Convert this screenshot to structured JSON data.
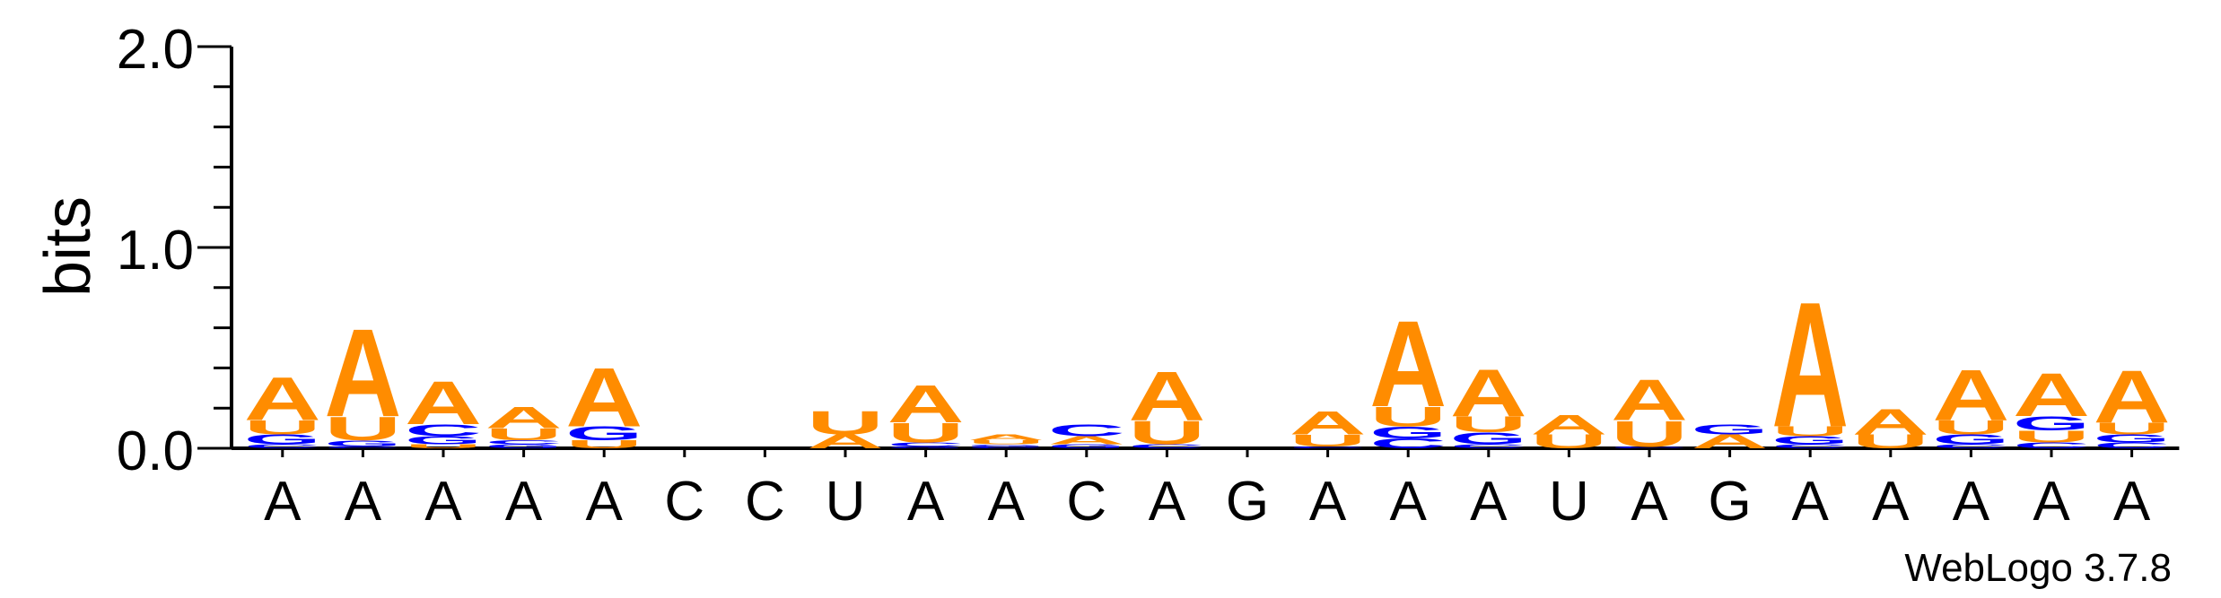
{
  "chart_data": {
    "type": "sequence-logo",
    "ylabel": "bits",
    "ylim": [
      0,
      2.0
    ],
    "yticks": [
      "0.0",
      "1.0",
      "2.0"
    ],
    "credit": "WebLogo 3.7.8",
    "colors": {
      "A": "#ff8c00",
      "U": "#ff8c00",
      "C": "#0000ff",
      "G": "#0000ff"
    },
    "positions": [
      {
        "label": "A",
        "stack": [
          [
            "C",
            0.02
          ],
          [
            "G",
            0.05
          ],
          [
            "U",
            0.07
          ],
          [
            "A",
            0.22
          ]
        ]
      },
      {
        "label": "A",
        "stack": [
          [
            "C",
            0.01
          ],
          [
            "G",
            0.03
          ],
          [
            "U",
            0.12
          ],
          [
            "A",
            0.45
          ]
        ]
      },
      {
        "label": "A",
        "stack": [
          [
            "U",
            0.02
          ],
          [
            "G",
            0.04
          ],
          [
            "C",
            0.06
          ],
          [
            "A",
            0.22
          ]
        ]
      },
      {
        "label": "A",
        "stack": [
          [
            "G",
            0.02
          ],
          [
            "C",
            0.02
          ],
          [
            "U",
            0.06
          ],
          [
            "A",
            0.11
          ]
        ]
      },
      {
        "label": "A",
        "stack": [
          [
            "U",
            0.04
          ],
          [
            "G",
            0.07
          ],
          [
            "A",
            0.3
          ]
        ]
      },
      {
        "label": "C",
        "stack": []
      },
      {
        "label": "C",
        "stack": []
      },
      {
        "label": "U",
        "stack": [
          [
            "A",
            0.07
          ],
          [
            "U",
            0.12
          ]
        ]
      },
      {
        "label": "A",
        "stack": [
          [
            "G",
            0.01
          ],
          [
            "C",
            0.02
          ],
          [
            "U",
            0.1
          ],
          [
            "A",
            0.19
          ]
        ]
      },
      {
        "label": "A",
        "stack": [
          [
            "C",
            0.01
          ],
          [
            "G",
            0.01
          ],
          [
            "U",
            0.02
          ],
          [
            "A",
            0.03
          ]
        ]
      },
      {
        "label": "C",
        "stack": [
          [
            "G",
            0.02
          ],
          [
            "A",
            0.04
          ],
          [
            "C",
            0.06
          ]
        ]
      },
      {
        "label": "A",
        "stack": [
          [
            "C",
            0.02
          ],
          [
            "U",
            0.12
          ],
          [
            "A",
            0.25
          ]
        ]
      },
      {
        "label": "G",
        "stack": []
      },
      {
        "label": "A",
        "stack": [
          [
            "C",
            0.01
          ],
          [
            "U",
            0.06
          ],
          [
            "A",
            0.12
          ]
        ]
      },
      {
        "label": "A",
        "stack": [
          [
            "C",
            0.05
          ],
          [
            "G",
            0.06
          ],
          [
            "U",
            0.1
          ],
          [
            "A",
            0.44
          ]
        ]
      },
      {
        "label": "A",
        "stack": [
          [
            "C",
            0.02
          ],
          [
            "G",
            0.06
          ],
          [
            "U",
            0.08
          ],
          [
            "A",
            0.24
          ]
        ]
      },
      {
        "label": "U",
        "stack": [
          [
            "U",
            0.07
          ],
          [
            "A",
            0.1
          ]
        ]
      },
      {
        "label": "A",
        "stack": [
          [
            "C",
            0.01
          ],
          [
            "U",
            0.13
          ],
          [
            "A",
            0.21
          ]
        ]
      },
      {
        "label": "G",
        "stack": [
          [
            "A",
            0.07
          ],
          [
            "G",
            0.05
          ]
        ]
      },
      {
        "label": "A",
        "stack": [
          [
            "C",
            0.02
          ],
          [
            "G",
            0.04
          ],
          [
            "U",
            0.05
          ],
          [
            "A",
            0.64
          ]
        ]
      },
      {
        "label": "A",
        "stack": [
          [
            "U",
            0.07
          ],
          [
            "A",
            0.13
          ]
        ]
      },
      {
        "label": "A",
        "stack": [
          [
            "C",
            0.02
          ],
          [
            "G",
            0.05
          ],
          [
            "U",
            0.07
          ],
          [
            "A",
            0.26
          ]
        ]
      },
      {
        "label": "A",
        "stack": [
          [
            "C",
            0.03
          ],
          [
            "U",
            0.06
          ],
          [
            "G",
            0.07
          ],
          [
            "A",
            0.22
          ]
        ]
      },
      {
        "label": "A",
        "stack": [
          [
            "C",
            0.03
          ],
          [
            "G",
            0.04
          ],
          [
            "U",
            0.06
          ],
          [
            "A",
            0.27
          ]
        ]
      }
    ]
  }
}
